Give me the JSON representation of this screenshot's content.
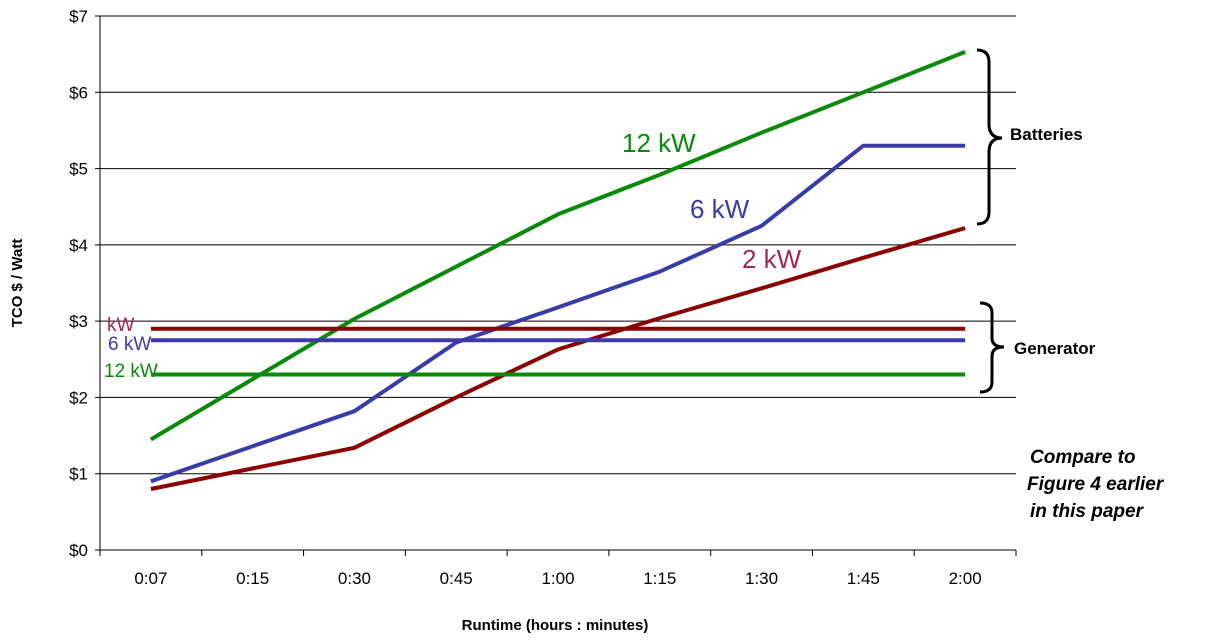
{
  "chart_data": {
    "type": "line",
    "xlabel": "Runtime (hours : minutes)",
    "ylabel": "TCO $ / Watt",
    "categories": [
      "0:07",
      "0:15",
      "0:30",
      "0:45",
      "1:00",
      "1:15",
      "1:30",
      "1:45",
      "2:00"
    ],
    "ylim": [
      0,
      7
    ],
    "y_ticks": [
      "$0",
      "$1",
      "$2",
      "$3",
      "$4",
      "$5",
      "$6",
      "$7"
    ],
    "grid": "horizontal",
    "colors": {
      "green": "#0a8a0a",
      "blue": "#3a3aa8",
      "darkred": "#8b0000",
      "magenta": "#9b2a5a"
    },
    "series": [
      {
        "name": "12 kW",
        "group": "Batteries",
        "color": "#0a8a0a",
        "points": [
          [
            0,
            1.45
          ],
          [
            2,
            3.03
          ],
          [
            4,
            4.4
          ],
          [
            5,
            4.92
          ],
          [
            6,
            5.47
          ],
          [
            7,
            6.0
          ],
          [
            8,
            6.53
          ]
        ]
      },
      {
        "name": "6 kW",
        "group": "Batteries",
        "color": "#3a3aa8",
        "points": [
          [
            0,
            0.9
          ],
          [
            2,
            1.82
          ],
          [
            3,
            2.72
          ],
          [
            4,
            3.18
          ],
          [
            5,
            3.65
          ],
          [
            6,
            4.25
          ],
          [
            7,
            5.3
          ],
          [
            8,
            5.3
          ]
        ]
      },
      {
        "name": "2 kW",
        "group": "Batteries",
        "color": "#8b0000",
        "points": [
          [
            0,
            0.8
          ],
          [
            2,
            1.34
          ],
          [
            3,
            2.0
          ],
          [
            4,
            2.63
          ],
          [
            5,
            3.04
          ],
          [
            6,
            3.43
          ],
          [
            7,
            3.83
          ],
          [
            8,
            4.22
          ]
        ]
      },
      {
        "name": "kW",
        "group": "Generator",
        "color": "#8b0000",
        "points": [
          [
            0,
            2.9
          ],
          [
            8,
            2.9
          ]
        ]
      },
      {
        "name": "6 kW",
        "group": "Generator",
        "color": "#3a3aa8",
        "points": [
          [
            0,
            2.75
          ],
          [
            8,
            2.75
          ]
        ]
      },
      {
        "name": "12 kW",
        "group": "Generator",
        "color": "#0a8a0a",
        "points": [
          [
            0,
            2.3
          ],
          [
            8,
            2.3
          ]
        ]
      }
    ],
    "annotations": {
      "batteries": "Batteries",
      "generator": "Generator",
      "note_line1": "Compare to",
      "note_line2": "Figure 4 earlier",
      "note_line3": "in this paper"
    }
  }
}
